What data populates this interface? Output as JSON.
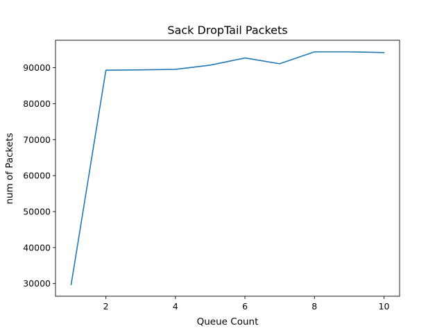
{
  "chart_data": {
    "type": "line",
    "title": "Sack DropTail Packets",
    "xlabel": "Queue Count",
    "ylabel": "num of Packets",
    "x": [
      1,
      2,
      3,
      4,
      5,
      6,
      7,
      8,
      9,
      10
    ],
    "series": [
      {
        "values": [
          29700,
          89300,
          89400,
          89550,
          90700,
          92700,
          91100,
          94400,
          94400,
          94200
        ],
        "color": "#1f77b4"
      }
    ],
    "xlim": [
      0.55,
      10.45
    ],
    "ylim": [
      26470,
      97630
    ],
    "xticks": [
      2,
      4,
      6,
      8,
      10
    ],
    "yticks": [
      30000,
      40000,
      50000,
      60000,
      70000,
      80000,
      90000
    ],
    "grid": false,
    "legend": "none"
  }
}
